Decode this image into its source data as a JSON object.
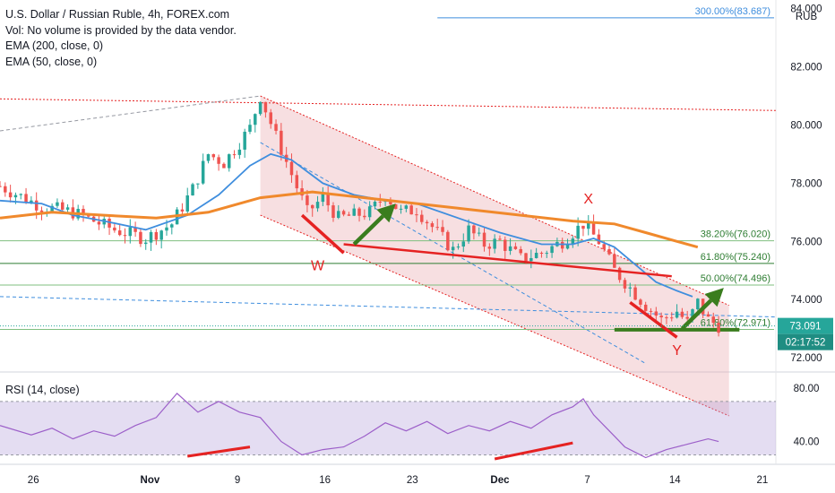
{
  "header": {
    "line1": "U.S. Dollar / Russian Ruble, 4h, FOREX.com",
    "line2": "Vol: No volume is provided by the data vendor.",
    "line3": "EMA (200, close, 0)",
    "line4": "EMA (50, close, 0)"
  },
  "rsi_label": "RSI (14, close)",
  "colors": {
    "up": "#26a69a",
    "down": "#ef5350",
    "ema50": "#3f8ede",
    "ema200": "#f0892c",
    "channel": "#e8a3a8",
    "fib": "#7fbf7f",
    "annot_red": "#e52222",
    "annot_green": "#3a7d1e",
    "rsi": "#9c5fc9"
  },
  "chart_data": [
    {
      "type": "candlestick",
      "title": "U.S. Dollar / Russian Ruble, 4h, FOREX.com",
      "yaxis_unit": "RUB",
      "ylim": [
        71.6,
        84.3
      ],
      "y_ticks": [
        "84.000",
        "82.000",
        "80.000",
        "78.000",
        "76.000",
        "74.000",
        "72.000"
      ],
      "x_ticks": [
        "26",
        "Nov",
        "9",
        "16",
        "23",
        "Dec",
        "7",
        "14",
        "21"
      ],
      "price_path": [
        [
          0,
          77.9
        ],
        [
          8,
          77.2
        ],
        [
          14,
          77.0
        ],
        [
          22,
          76.4
        ],
        [
          28,
          76.1
        ],
        [
          33,
          76.6
        ],
        [
          37,
          77.8
        ],
        [
          40,
          79.0
        ],
        [
          43,
          78.7
        ],
        [
          46,
          79.4
        ],
        [
          48,
          79.9
        ],
        [
          50,
          81.0
        ],
        [
          53,
          79.6
        ],
        [
          56,
          78.3
        ],
        [
          59,
          77.0
        ],
        [
          62,
          77.5
        ],
        [
          65,
          76.8
        ],
        [
          68,
          76.9
        ],
        [
          71,
          77.0
        ],
        [
          74,
          77.6
        ],
        [
          77,
          77.0
        ],
        [
          80,
          77.1
        ],
        [
          84,
          76.3
        ],
        [
          87,
          75.7
        ],
        [
          90,
          76.4
        ],
        [
          93,
          75.9
        ],
        [
          96,
          76.0
        ],
        [
          100,
          75.4
        ],
        [
          104,
          75.6
        ],
        [
          108,
          76.0
        ],
        [
          112,
          76.6
        ],
        [
          115,
          76.0
        ],
        [
          118,
          75.0
        ],
        [
          121,
          74.4
        ],
        [
          124,
          73.8
        ],
        [
          127,
          73.3
        ],
        [
          130,
          73.6
        ],
        [
          132,
          73.2
        ],
        [
          134,
          73.9
        ],
        [
          136,
          73.3
        ],
        [
          138,
          73.1
        ]
      ],
      "series": [
        {
          "name": "EMA (50, close, 0)",
          "values": [
            [
              0,
              77.4
            ],
            [
              8,
              77.3
            ],
            [
              14,
              76.9
            ],
            [
              20,
              76.7
            ],
            [
              28,
              76.4
            ],
            [
              36,
              76.9
            ],
            [
              42,
              77.6
            ],
            [
              48,
              78.6
            ],
            [
              52,
              79.0
            ],
            [
              56,
              78.8
            ],
            [
              62,
              78.0
            ],
            [
              68,
              77.6
            ],
            [
              74,
              77.4
            ],
            [
              80,
              77.3
            ],
            [
              88,
              76.8
            ],
            [
              96,
              76.3
            ],
            [
              104,
              75.9
            ],
            [
              110,
              75.9
            ],
            [
              114,
              76.1
            ],
            [
              118,
              75.8
            ],
            [
              122,
              75.2
            ],
            [
              126,
              74.6
            ],
            [
              130,
              74.3
            ],
            [
              133,
              74.1
            ]
          ]
        },
        {
          "name": "EMA (200, close, 0)",
          "values": [
            [
              0,
              76.8
            ],
            [
              10,
              77.0
            ],
            [
              20,
              76.9
            ],
            [
              30,
              76.8
            ],
            [
              40,
              77.0
            ],
            [
              50,
              77.5
            ],
            [
              60,
              77.7
            ],
            [
              70,
              77.5
            ],
            [
              80,
              77.3
            ],
            [
              90,
              77.1
            ],
            [
              100,
              76.9
            ],
            [
              110,
              76.7
            ],
            [
              118,
              76.6
            ],
            [
              124,
              76.3
            ],
            [
              130,
              76.0
            ],
            [
              134,
              75.8
            ]
          ]
        }
      ],
      "fibonacci_levels": [
        {
          "label": "300.00%(83.687)",
          "value": 83.687
        },
        {
          "label": "38.20%(76.020)",
          "value": 76.02
        },
        {
          "label": "61.80%(75.240)",
          "value": 75.24
        },
        {
          "label": "50.00%(74.496)",
          "value": 74.496
        },
        {
          "label": "61.80%(72.971)",
          "value": 72.971
        }
      ],
      "channel": {
        "upper": [
          [
            50,
            81.0
          ],
          [
            140,
            73.8
          ]
        ],
        "lower": [
          [
            50,
            76.9
          ],
          [
            140,
            70.0
          ]
        ]
      },
      "annotations": [
        "W",
        "X",
        "Y"
      ],
      "last_price": "73.091",
      "countdown": "02:17:52"
    },
    {
      "type": "line",
      "title": "RSI (14, close)",
      "ylim": [
        25,
        90
      ],
      "y_ticks": [
        "80.00",
        "40.00"
      ],
      "band": [
        70,
        30
      ],
      "values": [
        [
          0,
          52
        ],
        [
          6,
          45
        ],
        [
          10,
          50
        ],
        [
          14,
          42
        ],
        [
          18,
          48
        ],
        [
          22,
          44
        ],
        [
          26,
          52
        ],
        [
          30,
          58
        ],
        [
          34,
          76
        ],
        [
          38,
          62
        ],
        [
          42,
          70
        ],
        [
          46,
          62
        ],
        [
          50,
          58
        ],
        [
          54,
          40
        ],
        [
          58,
          30
        ],
        [
          62,
          34
        ],
        [
          66,
          36
        ],
        [
          70,
          44
        ],
        [
          74,
          54
        ],
        [
          78,
          48
        ],
        [
          82,
          55
        ],
        [
          86,
          46
        ],
        [
          90,
          52
        ],
        [
          94,
          48
        ],
        [
          98,
          55
        ],
        [
          102,
          50
        ],
        [
          106,
          60
        ],
        [
          110,
          66
        ],
        [
          112,
          72
        ],
        [
          114,
          60
        ],
        [
          116,
          52
        ],
        [
          118,
          44
        ],
        [
          120,
          36
        ],
        [
          124,
          28
        ],
        [
          128,
          34
        ],
        [
          132,
          38
        ],
        [
          136,
          42
        ],
        [
          138,
          40
        ]
      ]
    }
  ]
}
